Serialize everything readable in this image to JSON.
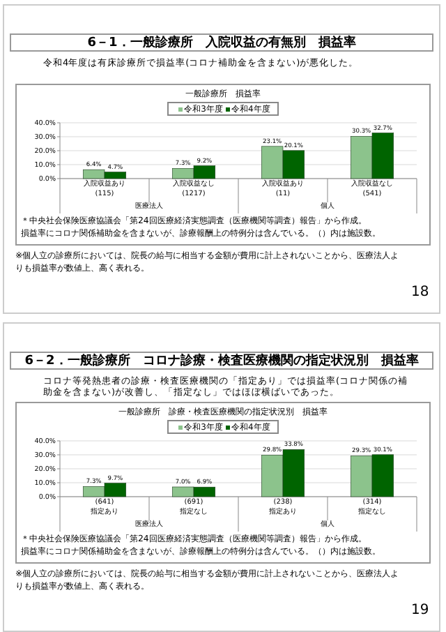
{
  "chart_data": [
    {
      "type": "bar",
      "title": "一般診療所　損益率",
      "subtitle": "令和4年度は有床診療所で損益率(コロナ補助金を含まない)が悪化した。",
      "categories": [
        "入院収益あり\n(115)",
        "入院収益なし\n(1217)",
        "入院収益あり\n(11)",
        "入院収益なし\n(541)"
      ],
      "series": [
        {
          "name": "令和3年度",
          "color": "#8cc38c",
          "values": [
            6.4,
            7.3,
            23.1,
            30.3
          ],
          "value_labels": [
            "6.4%",
            "7.3%",
            "23.1%",
            "30.3%"
          ]
        },
        {
          "name": "令和4年度",
          "color": "#006400",
          "values": [
            4.7,
            9.2,
            20.1,
            32.7
          ],
          "value_labels": [
            "4.7%",
            "9.2%",
            "20.1%",
            "32.7%"
          ]
        }
      ],
      "ylim": [
        0,
        40
      ],
      "yticks": [
        {
          "value": 0,
          "label": "0.0%"
        },
        {
          "value": 10,
          "label": "10.0%"
        },
        {
          "value": 20,
          "label": "20.0%"
        },
        {
          "value": 30,
          "label": "30.0%"
        },
        {
          "value": 40,
          "label": "40.0%"
        }
      ],
      "grid": "y",
      "legend": "top",
      "annotations": [
        "6－1．一般診療所　入院収益の有無別　損益率",
        "医療法人",
        "個人",
        "＊中央社会保険医療協議会「第24回医療経済実態調査（医療機関等調査）報告」から作成。",
        "損益率にコロナ関係補助金を含まないが、診療報酬上の特例分は含んでいる。（）内は施設数。",
        "※個人立の診療所においては、院長の給与に相当する金額が費用に計上されないことから、医療法人よりも損益率が数値上、高く表れる。",
        "18"
      ]
    },
    {
      "type": "bar",
      "title": "一般診療所　診療・検査医療機関の指定状況別　損益率",
      "subtitle": "コロナ等発熱患者の診療・検査医療機関の「指定あり」では損益率(コロナ関係の補助金を含まない)が改善し、「指定なし」ではほぼ横ばいであった。",
      "categories": [
        "(641)\n指定あり",
        "(691)\n指定なし",
        "(238)\n指定あり",
        "(314)\n指定なし"
      ],
      "series": [
        {
          "name": "令和3年度",
          "color": "#8cc38c",
          "values": [
            7.3,
            7.0,
            29.8,
            29.3
          ],
          "value_labels": [
            "7.3%",
            "7.0%",
            "29.8%",
            "29.3%"
          ]
        },
        {
          "name": "令和4年度",
          "color": "#006400",
          "values": [
            9.7,
            6.9,
            33.8,
            30.1
          ],
          "value_labels": [
            "9.7%",
            "6.9%",
            "33.8%",
            "30.1%"
          ]
        }
      ],
      "ylim": [
        0,
        40
      ],
      "yticks": [
        {
          "value": 0,
          "label": "0.0%"
        },
        {
          "value": 10,
          "label": "10.0%"
        },
        {
          "value": 20,
          "label": "20.0%"
        },
        {
          "value": 30,
          "label": "30.0%"
        },
        {
          "value": 40,
          "label": "40.0%"
        }
      ],
      "grid": "y",
      "legend": "top",
      "annotations": [
        "6－2．一般診療所　コロナ診療・検査医療機関の指定状況別　損益率",
        "医療法人",
        "個人",
        "＊中央社会保険医療協議会「第24回医療経済実態調査（医療機関等調査）報告」から作成。",
        "損益率にコロナ関係補助金を含まないが、診療報酬上の特例分は含んでいる。（）内は施設数。",
        "※個人立の診療所においては、院長の給与に相当する金額が費用に計上されないことから、医療法人よりも損益率が数値上、高く表れる。",
        "19"
      ]
    }
  ]
}
